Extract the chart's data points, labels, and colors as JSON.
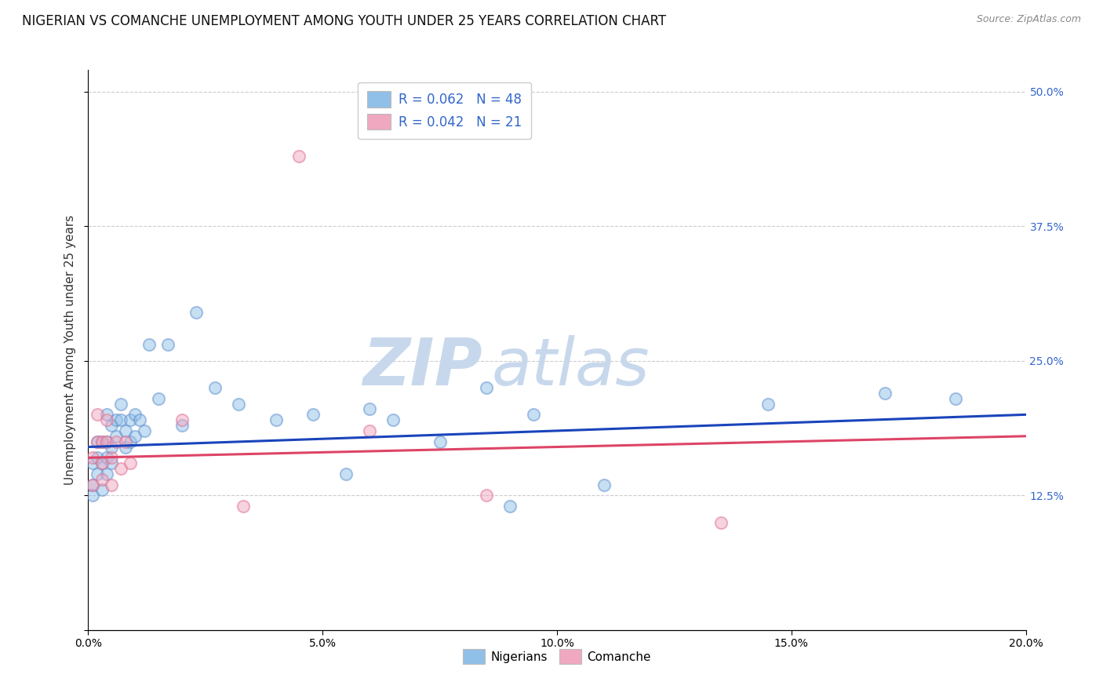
{
  "title": "NIGERIAN VS COMANCHE UNEMPLOYMENT AMONG YOUTH UNDER 25 YEARS CORRELATION CHART",
  "source": "Source: ZipAtlas.com",
  "ylabel": "Unemployment Among Youth under 25 years",
  "watermark_zip": "ZIP",
  "watermark_atlas": "atlas",
  "xlim": [
    0.0,
    0.2
  ],
  "ylim": [
    0.0,
    0.52
  ],
  "xticks": [
    0.0,
    0.05,
    0.1,
    0.15,
    0.2
  ],
  "xticklabels": [
    "0.0%",
    "5.0%",
    "10.0%",
    "15.0%",
    "20.0%"
  ],
  "yticks": [
    0.0,
    0.125,
    0.25,
    0.375,
    0.5
  ],
  "right_yticklabels": [
    "",
    "12.5%",
    "25.0%",
    "37.5%",
    "50.0%"
  ],
  "legend_bottom": [
    "Nigerians",
    "Comanche"
  ],
  "nigerian_color": "#90c0e8",
  "comanche_color": "#f0a8c0",
  "nigerian_edge_color": "#6090d0",
  "comanche_edge_color": "#e07090",
  "nigerian_line_color": "#1a44bb",
  "comanche_line_color": "#dd4466",
  "nigerian_R": 0.062,
  "nigerian_N": 48,
  "comanche_R": 0.042,
  "comanche_N": 21,
  "nigerian_x": [
    0.001,
    0.001,
    0.001,
    0.002,
    0.002,
    0.002,
    0.003,
    0.003,
    0.003,
    0.004,
    0.004,
    0.004,
    0.004,
    0.005,
    0.005,
    0.005,
    0.006,
    0.006,
    0.007,
    0.007,
    0.008,
    0.008,
    0.009,
    0.009,
    0.01,
    0.01,
    0.011,
    0.012,
    0.013,
    0.015,
    0.017,
    0.02,
    0.023,
    0.027,
    0.032,
    0.04,
    0.048,
    0.055,
    0.06,
    0.065,
    0.075,
    0.085,
    0.09,
    0.095,
    0.11,
    0.145,
    0.17,
    0.185
  ],
  "nigerian_y": [
    0.155,
    0.135,
    0.125,
    0.175,
    0.145,
    0.16,
    0.175,
    0.155,
    0.13,
    0.2,
    0.175,
    0.16,
    0.145,
    0.19,
    0.17,
    0.155,
    0.195,
    0.18,
    0.21,
    0.195,
    0.185,
    0.17,
    0.195,
    0.175,
    0.2,
    0.18,
    0.195,
    0.185,
    0.265,
    0.215,
    0.265,
    0.19,
    0.295,
    0.225,
    0.21,
    0.195,
    0.2,
    0.145,
    0.205,
    0.195,
    0.175,
    0.225,
    0.115,
    0.2,
    0.135,
    0.21,
    0.22,
    0.215
  ],
  "comanche_x": [
    0.001,
    0.001,
    0.002,
    0.002,
    0.003,
    0.003,
    0.003,
    0.004,
    0.004,
    0.005,
    0.005,
    0.006,
    0.007,
    0.008,
    0.009,
    0.02,
    0.033,
    0.045,
    0.06,
    0.085,
    0.135
  ],
  "comanche_y": [
    0.16,
    0.135,
    0.2,
    0.175,
    0.175,
    0.155,
    0.14,
    0.195,
    0.175,
    0.16,
    0.135,
    0.175,
    0.15,
    0.175,
    0.155,
    0.195,
    0.115,
    0.44,
    0.185,
    0.125,
    0.1
  ],
  "nigerian_trend": [
    0.17,
    0.2
  ],
  "comanche_trend": [
    0.16,
    0.18
  ],
  "background_color": "#ffffff",
  "grid_color": "#cccccc",
  "title_fontsize": 12,
  "axis_fontsize": 11,
  "tick_fontsize": 10,
  "watermark_fontsize_zip": 60,
  "watermark_fontsize_atlas": 60,
  "watermark_color": "#c8d8ec",
  "dot_size": 120,
  "dot_alpha": 0.5,
  "dot_linewidth": 1.5
}
